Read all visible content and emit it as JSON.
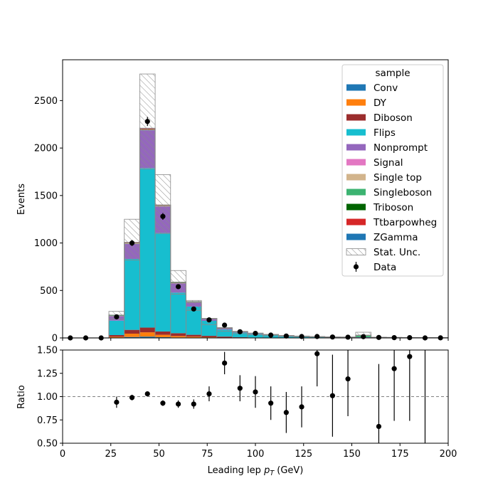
{
  "chart_data": [
    {
      "type": "bar",
      "stacked": true,
      "bin_width": 8,
      "x": [
        4,
        12,
        20,
        28,
        36,
        44,
        52,
        60,
        68,
        76,
        84,
        92,
        100,
        108,
        116,
        124,
        132,
        140,
        148,
        156,
        164,
        172,
        180,
        188,
        196
      ],
      "ylabel": "Events",
      "ylim": [
        0,
        2930
      ],
      "yticks": [
        0,
        500,
        1000,
        1500,
        2000,
        2500
      ],
      "legend_title": "sample",
      "legend_location": "upper right",
      "series": [
        {
          "name": "Conv",
          "color": "#1f77b4",
          "values": [
            0,
            0,
            0,
            2,
            10,
            14,
            8,
            5,
            3,
            2,
            1,
            0,
            0,
            0,
            0,
            0,
            0,
            0,
            0,
            0,
            0,
            0,
            0,
            0,
            0
          ]
        },
        {
          "name": "DY",
          "color": "#ff7f0e",
          "values": [
            0,
            0,
            0,
            10,
            35,
            45,
            25,
            15,
            10,
            5,
            3,
            2,
            1,
            1,
            0,
            0,
            0,
            0,
            0,
            0,
            0,
            0,
            0,
            0,
            0
          ]
        },
        {
          "name": "Diboson",
          "color": "#9b2d2d",
          "values": [
            0,
            0,
            0,
            18,
            40,
            50,
            35,
            30,
            20,
            15,
            10,
            5,
            4,
            3,
            2,
            2,
            1,
            1,
            1,
            1,
            1,
            0,
            0,
            0,
            0
          ]
        },
        {
          "name": "Flips",
          "color": "#17becf",
          "values": [
            0,
            0,
            0,
            152,
            747,
            1680,
            1038,
            427,
            297,
            158,
            74,
            49,
            37,
            26,
            19,
            13,
            10,
            8,
            6,
            6,
            4,
            3,
            3,
            2,
            2
          ]
        },
        {
          "name": "Nonprompt",
          "color": "#9467bd",
          "values": [
            0,
            0,
            0,
            50,
            160,
            400,
            280,
            100,
            45,
            20,
            12,
            8,
            6,
            4,
            3,
            2,
            2,
            1,
            1,
            1,
            1,
            1,
            0,
            0,
            0
          ]
        },
        {
          "name": "Signal",
          "color": "#e377c2",
          "values": [
            0,
            0,
            0,
            0,
            0,
            0,
            0,
            0,
            0,
            0,
            0,
            0,
            0,
            0,
            0,
            0,
            0,
            0,
            0,
            0,
            0,
            0,
            0,
            0,
            0
          ]
        },
        {
          "name": "Single top",
          "color": "#d2b48c",
          "values": [
            0,
            0,
            0,
            1,
            2,
            2,
            2,
            1,
            1,
            1,
            0,
            0,
            0,
            0,
            0,
            0,
            0,
            0,
            0,
            0,
            0,
            0,
            0,
            0,
            0
          ]
        },
        {
          "name": "Singleboson",
          "color": "#3cb371",
          "values": [
            0,
            0,
            0,
            3,
            4,
            5,
            4,
            3,
            2,
            2,
            1,
            1,
            1,
            1,
            0,
            0,
            0,
            0,
            0,
            20,
            0,
            0,
            0,
            0,
            0
          ]
        },
        {
          "name": "Triboson",
          "color": "#006400",
          "values": [
            0,
            0,
            0,
            0,
            0,
            0,
            0,
            0,
            0,
            0,
            0,
            0,
            0,
            0,
            0,
            0,
            0,
            0,
            0,
            0,
            0,
            0,
            0,
            0,
            0
          ]
        },
        {
          "name": "Ttbarpowheg",
          "color": "#d62728",
          "values": [
            0,
            0,
            0,
            4,
            8,
            12,
            8,
            6,
            4,
            2,
            2,
            1,
            1,
            1,
            1,
            0,
            0,
            0,
            0,
            0,
            0,
            0,
            0,
            0,
            0
          ]
        },
        {
          "name": "ZGamma",
          "color": "#1f77b4",
          "values": [
            0,
            0,
            0,
            0,
            0,
            0,
            0,
            0,
            0,
            0,
            0,
            0,
            0,
            0,
            0,
            0,
            0,
            0,
            0,
            0,
            0,
            0,
            0,
            0,
            0
          ]
        }
      ],
      "stat_unc": {
        "name": "Stat. Unc.",
        "low": [
          0,
          0,
          0,
          200,
          820,
          1780,
          1100,
          460,
          290,
          140,
          70,
          45,
          33,
          23,
          16,
          12,
          9,
          7,
          6,
          25,
          4,
          3,
          2,
          2,
          1
        ],
        "high": [
          0,
          0,
          0,
          280,
          1250,
          2780,
          1720,
          710,
          395,
          200,
          110,
          70,
          50,
          35,
          25,
          20,
          15,
          12,
          10,
          60,
          8,
          6,
          5,
          4,
          3
        ]
      },
      "data": {
        "name": "Data",
        "values": [
          0,
          0,
          0,
          222,
          1000,
          2280,
          1280,
          540,
          305,
          190,
          135,
          65,
          48,
          30,
          20,
          15,
          15,
          10,
          8,
          13,
          5,
          3,
          3,
          0,
          1
        ],
        "errors": [
          0,
          0,
          0,
          15,
          32,
          48,
          36,
          23,
          17,
          14,
          12,
          8,
          7,
          5,
          4,
          4,
          4,
          3,
          3,
          4,
          2,
          2,
          2,
          0,
          1
        ]
      }
    },
    {
      "type": "scatter",
      "x": [
        28,
        36,
        44,
        52,
        60,
        68,
        76,
        84,
        92,
        100,
        108,
        116,
        124,
        132,
        140,
        148,
        164,
        172,
        180,
        188
      ],
      "y": [
        0.94,
        0.99,
        1.03,
        0.93,
        0.92,
        0.92,
        1.03,
        1.36,
        1.09,
        1.05,
        0.93,
        0.83,
        0.89,
        1.46,
        1.01,
        1.19,
        0.68,
        1.3,
        1.43,
        null
      ],
      "yerr": [
        0.06,
        0.03,
        0.02,
        0.03,
        0.04,
        0.05,
        0.08,
        0.12,
        0.14,
        0.17,
        0.18,
        0.22,
        0.22,
        0.35,
        0.44,
        0.4,
        0.67,
        0.56,
        0.69,
        null
      ],
      "xlabel": "Leading lep $p_T$ (GeV)",
      "xlim": [
        0,
        200
      ],
      "xticks": [
        0,
        25,
        50,
        75,
        100,
        125,
        150,
        175,
        200
      ],
      "ylabel": "Ratio",
      "ylim": [
        0.5,
        1.5
      ],
      "yticks": [
        "0.50",
        "0.75",
        "1.00",
        "1.25",
        "1.50"
      ],
      "reference_line": 1.0,
      "upper_only_bins": [
        188
      ]
    }
  ]
}
